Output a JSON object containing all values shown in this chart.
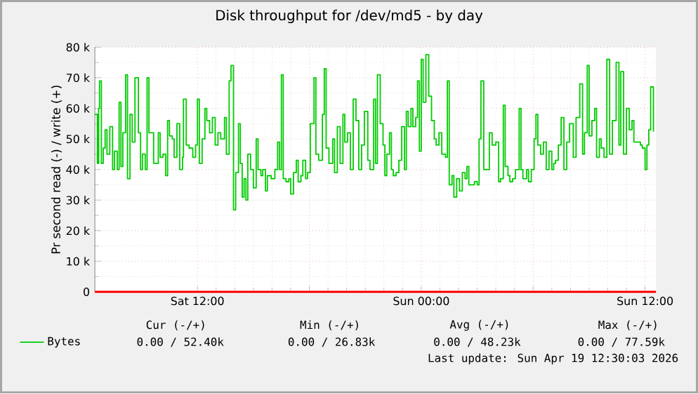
{
  "chart_data": {
    "type": "step",
    "title": "Disk throughput for /dev/md5 - by day",
    "ylabel": "Pr second read (-) / write (+)",
    "xlim": [
      "2026-04-18T06:30",
      "2026-04-19T12:35"
    ],
    "ylim": [
      0,
      80000
    ],
    "xticks": [
      {
        "value": "2026-04-18T12:00",
        "label": "Sat 12:00"
      },
      {
        "value": "2026-04-18T18:00",
        "label": null
      },
      {
        "value": "2026-04-19T00:00",
        "label": "Sun 00:00"
      },
      {
        "value": "2026-04-19T06:00",
        "label": null
      },
      {
        "value": "2026-04-19T12:00",
        "label": "Sun 12:00"
      }
    ],
    "yticks": [
      0,
      {
        "value": 10000,
        "label": "10 k"
      },
      {
        "value": 20000,
        "label": "20 k"
      },
      {
        "value": 30000,
        "label": "30 k"
      },
      {
        "value": 40000,
        "label": "40 k"
      },
      {
        "value": 50000,
        "label": "50 k"
      },
      {
        "value": 60000,
        "label": "60 k"
      },
      {
        "value": 70000,
        "label": "70 k"
      },
      {
        "value": 80000,
        "label": "80 k"
      }
    ],
    "grid": true,
    "legend": "bottom left",
    "marker": "none",
    "line_style": "solid",
    "ref_lines": [
      {
        "axis": "y",
        "value": 0,
        "color": "#ff0000"
      }
    ],
    "annotations": [
      "Cur (-/+)",
      "Min (-/+)",
      "Avg (-/+)",
      "Max (-/+)",
      "0.00 / 52.40k",
      "0.00 / 26.83k",
      "0.00 / 48.23k",
      "0.00 / 77.59k",
      "Last update: Sun Apr 19 12:30:03 2026"
    ],
    "series": [
      {
        "name": "Bytes",
        "color": "#00cc00",
        "x": [
          "2026-04-18T06:30",
          "2026-04-18T06:38",
          "2026-04-18T06:42",
          "2026-04-18T06:45",
          "2026-04-18T06:51",
          "2026-04-18T06:57",
          "2026-04-18T07:03",
          "2026-04-18T07:09",
          "2026-04-18T07:18",
          "2026-04-18T07:27",
          "2026-04-18T07:33",
          "2026-04-18T07:42",
          "2026-04-18T07:48",
          "2026-04-18T07:54",
          "2026-04-18T08:00",
          "2026-04-18T08:09",
          "2026-04-18T08:15",
          "2026-04-18T08:23",
          "2026-04-18T08:30",
          "2026-04-18T08:39",
          "2026-04-18T08:45",
          "2026-04-18T08:50",
          "2026-04-18T08:57",
          "2026-04-18T09:03",
          "2026-04-18T09:12",
          "2026-04-18T09:18",
          "2026-04-18T09:24",
          "2026-04-18T09:33",
          "2026-04-18T09:39",
          "2026-04-18T09:45",
          "2026-04-18T09:54",
          "2026-04-18T10:00",
          "2026-04-18T10:09",
          "2026-04-18T10:18",
          "2026-04-18T10:24",
          "2026-04-18T10:30",
          "2026-04-18T10:39",
          "2026-04-18T10:45",
          "2026-04-18T10:54",
          "2026-04-18T11:03",
          "2026-04-18T11:12",
          "2026-04-18T11:15",
          "2026-04-18T11:24",
          "2026-04-18T11:33",
          "2026-04-18T11:45",
          "2026-04-18T11:54",
          "2026-04-18T12:00",
          "2026-04-18T12:06",
          "2026-04-18T12:15",
          "2026-04-18T12:24",
          "2026-04-18T12:30",
          "2026-04-18T12:39",
          "2026-04-18T12:48",
          "2026-04-18T12:57",
          "2026-04-18T13:06",
          "2026-04-18T13:15",
          "2026-04-18T13:27",
          "2026-04-18T13:33",
          "2026-04-18T13:42",
          "2026-04-18T13:48",
          "2026-04-18T13:56",
          "2026-04-18T14:03",
          "2026-04-18T14:12",
          "2026-04-18T14:18",
          "2026-04-18T14:24",
          "2026-04-18T14:30",
          "2026-04-18T14:36",
          "2026-04-18T14:42",
          "2026-04-18T14:51",
          "2026-04-18T15:00",
          "2026-04-18T15:09",
          "2026-04-18T15:15",
          "2026-04-18T15:24",
          "2026-04-18T15:30",
          "2026-04-18T15:39",
          "2026-04-18T15:45",
          "2026-04-18T15:57",
          "2026-04-18T16:09",
          "2026-04-18T16:18",
          "2026-04-18T16:24",
          "2026-04-18T16:30",
          "2026-04-18T16:36",
          "2026-04-18T16:45",
          "2026-04-18T16:54",
          "2026-04-18T17:00",
          "2026-04-18T17:09",
          "2026-04-18T17:18",
          "2026-04-18T17:24",
          "2026-04-18T17:33",
          "2026-04-18T17:39",
          "2026-04-18T17:48",
          "2026-04-18T17:54",
          "2026-04-18T18:03",
          "2026-04-18T18:15",
          "2026-04-18T18:21",
          "2026-04-18T18:30",
          "2026-04-18T18:42",
          "2026-04-18T18:48",
          "2026-04-18T18:54",
          "2026-04-18T19:03",
          "2026-04-18T19:15",
          "2026-04-18T19:21",
          "2026-04-18T19:30",
          "2026-04-18T19:39",
          "2026-04-18T19:48",
          "2026-04-18T19:54",
          "2026-04-18T20:03",
          "2026-04-18T20:12",
          "2026-04-18T20:21",
          "2026-04-18T20:30",
          "2026-04-18T20:39",
          "2026-04-18T20:48",
          "2026-04-18T20:57",
          "2026-04-18T21:08",
          "2026-04-18T21:15",
          "2026-04-18T21:27",
          "2026-04-18T21:33",
          "2026-04-18T21:39",
          "2026-04-18T21:48",
          "2026-04-18T21:57",
          "2026-04-18T22:03",
          "2026-04-18T22:09",
          "2026-04-18T22:18",
          "2026-04-18T22:24",
          "2026-04-18T22:30",
          "2026-04-18T22:39",
          "2026-04-18T22:48",
          "2026-04-18T22:57",
          "2026-04-18T23:06",
          "2026-04-18T23:12",
          "2026-04-18T23:18",
          "2026-04-18T23:27",
          "2026-04-18T23:33",
          "2026-04-18T23:42",
          "2026-04-18T23:48",
          "2026-04-18T23:54",
          "2026-04-19T00:00",
          "2026-04-19T00:06",
          "2026-04-19T00:15",
          "2026-04-19T00:24",
          "2026-04-19T00:33",
          "2026-04-19T00:42",
          "2026-04-19T00:48",
          "2026-04-19T00:57",
          "2026-04-19T01:06",
          "2026-04-19T01:18",
          "2026-04-19T01:24",
          "2026-04-19T01:30",
          "2026-04-19T01:39",
          "2026-04-19T01:45",
          "2026-04-19T01:54",
          "2026-04-19T02:03",
          "2026-04-19T02:12",
          "2026-04-19T02:21",
          "2026-04-19T02:27",
          "2026-04-19T02:33",
          "2026-04-19T02:42",
          "2026-04-19T02:51",
          "2026-04-19T03:00",
          "2026-04-19T03:06",
          "2026-04-19T03:12",
          "2026-04-19T03:21",
          "2026-04-19T03:30",
          "2026-04-19T03:39",
          "2026-04-19T03:48",
          "2026-04-19T04:00",
          "2026-04-19T04:09",
          "2026-04-19T04:15",
          "2026-04-19T04:24",
          "2026-04-19T04:30",
          "2026-04-19T04:39",
          "2026-04-19T04:45",
          "2026-04-19T04:54",
          "2026-04-19T05:03",
          "2026-04-19T05:15",
          "2026-04-19T05:21",
          "2026-04-19T05:27",
          "2026-04-19T05:39",
          "2026-04-19T05:45",
          "2026-04-19T05:54",
          "2026-04-19T06:03",
          "2026-04-19T06:09",
          "2026-04-19T06:15",
          "2026-04-19T06:24",
          "2026-04-19T06:33",
          "2026-04-19T06:42",
          "2026-04-19T06:51",
          "2026-04-19T07:00",
          "2026-04-19T07:06",
          "2026-04-19T07:12",
          "2026-04-19T07:21",
          "2026-04-19T07:30",
          "2026-04-19T07:39",
          "2026-04-19T07:48",
          "2026-04-19T07:57",
          "2026-04-19T08:09",
          "2026-04-19T08:18",
          "2026-04-19T08:30",
          "2026-04-19T08:39",
          "2026-04-19T08:45",
          "2026-04-19T08:54",
          "2026-04-19T09:00",
          "2026-04-19T09:09",
          "2026-04-19T09:18",
          "2026-04-19T09:24",
          "2026-04-19T09:33",
          "2026-04-19T09:39",
          "2026-04-19T09:48",
          "2026-04-19T09:57",
          "2026-04-19T10:06",
          "2026-04-19T10:15",
          "2026-04-19T10:27",
          "2026-04-19T10:36",
          "2026-04-19T10:42",
          "2026-04-19T10:51",
          "2026-04-19T11:00",
          "2026-04-19T11:09",
          "2026-04-19T11:18",
          "2026-04-19T11:24",
          "2026-04-19T11:33",
          "2026-04-19T11:45",
          "2026-04-19T11:51",
          "2026-04-19T12:00",
          "2026-04-19T12:06",
          "2026-04-19T12:12",
          "2026-04-19T12:18",
          "2026-04-19T12:27"
        ],
        "values": [
          58000,
          42000,
          60000,
          69000,
          42000,
          47000,
          53000,
          45000,
          54000,
          40000,
          46000,
          40000,
          62000,
          41000,
          52000,
          71000,
          37000,
          58000,
          49000,
          70000,
          70000,
          52000,
          40000,
          45000,
          40000,
          70000,
          52000,
          52000,
          42000,
          42000,
          52000,
          44000,
          45000,
          38000,
          56000,
          51000,
          50000,
          44000,
          55000,
          40000,
          44000,
          63000,
          48000,
          47000,
          44000,
          48000,
          63000,
          42000,
          50000,
          60000,
          56000,
          52000,
          57000,
          48000,
          52000,
          50000,
          57000,
          45000,
          69000,
          74000,
          26800,
          39000,
          55000,
          42000,
          31000,
          37000,
          30000,
          45000,
          40000,
          34000,
          50000,
          40000,
          38000,
          40000,
          33000,
          38000,
          37000,
          40000,
          49000,
          40000,
          71000,
          37000,
          36000,
          37000,
          32000,
          39000,
          43000,
          36000,
          38000,
          43000,
          37000,
          39000,
          55000,
          70000,
          45000,
          43000,
          58000,
          73000,
          47000,
          42000,
          50000,
          39000,
          54000,
          42000,
          58000,
          49000,
          52000,
          40000,
          63000,
          56000,
          40000,
          48000,
          59000,
          43000,
          40000,
          63000,
          42000,
          71000,
          55000,
          48000,
          38000,
          45000,
          52000,
          40000,
          38000,
          39000,
          43000,
          54000,
          40000,
          59000,
          54000,
          60000,
          54000,
          57000,
          69000,
          46000,
          76000,
          62000,
          77600,
          64000,
          56000,
          50000,
          48000,
          52000,
          45000,
          44000,
          69000,
          35000,
          38000,
          31000,
          37000,
          33000,
          39000,
          37000,
          41000,
          35000,
          35000,
          36000,
          35000,
          50000,
          69000,
          40000,
          40000,
          52000,
          48000,
          49000,
          36000,
          37000,
          61000,
          41000,
          38000,
          36000,
          37000,
          40000,
          60000,
          40000,
          37000,
          40000,
          36000,
          40000,
          50000,
          58000,
          48000,
          45000,
          49000,
          40000,
          46000,
          40000,
          42000,
          43000,
          48000,
          57000,
          40000,
          49000,
          55000,
          44000,
          57000,
          68000,
          45000,
          52000,
          74000,
          51000,
          56000,
          60000,
          44000,
          50000,
          47000,
          44000,
          76000,
          45000,
          56000,
          75000,
          48000,
          72000,
          45000,
          60000,
          53000,
          56000,
          49000,
          49000,
          48000,
          47000,
          40000,
          48000,
          53000,
          67000,
          52400
        ]
      }
    ]
  }
}
